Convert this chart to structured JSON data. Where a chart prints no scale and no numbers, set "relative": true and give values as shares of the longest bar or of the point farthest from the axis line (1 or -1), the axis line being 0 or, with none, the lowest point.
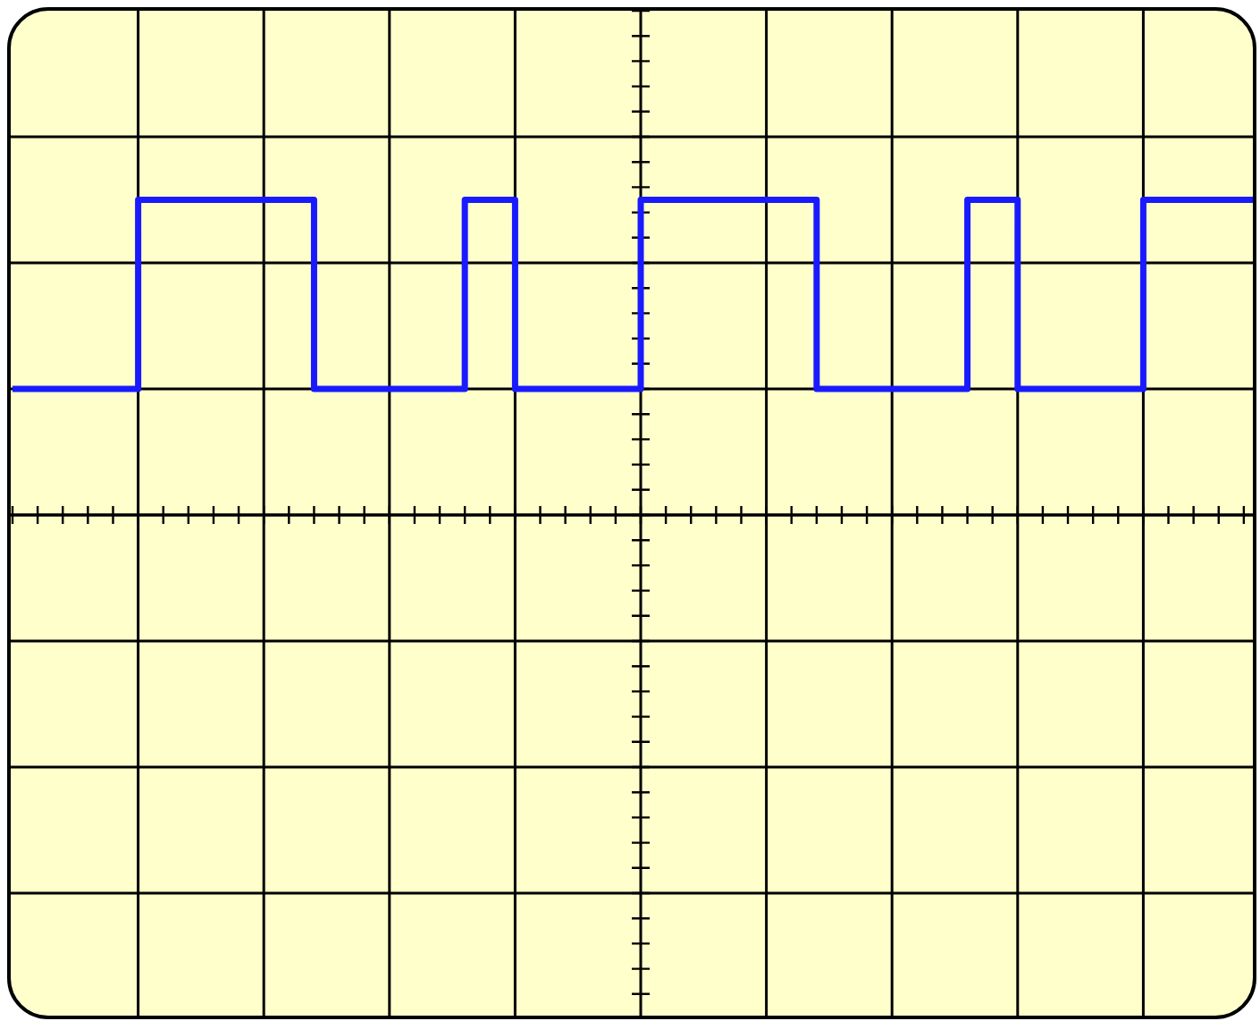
{
  "chart_data": {
    "type": "step",
    "relative": true,
    "categories": [
      null,
      null,
      null,
      null,
      null,
      null,
      null,
      null,
      null,
      null,
      null,
      null,
      null,
      null,
      null,
      null,
      null,
      null,
      null,
      null,
      null,
      null,
      null,
      null,
      null,
      null,
      null,
      null,
      null,
      null,
      null,
      null,
      null,
      null,
      null,
      null,
      null,
      null,
      null,
      null,
      null,
      null,
      null,
      null,
      null,
      null,
      null,
      null,
      null,
      null,
      null
    ],
    "values": [
      0.4,
      0.4,
      0.4,
      0.4,
      0.4,
      1,
      1,
      1,
      1,
      1,
      1,
      1,
      0.4,
      0.4,
      0.4,
      0.4,
      0.4,
      0.4,
      1,
      1,
      0.4,
      0.4,
      0.4,
      0.4,
      0.4,
      1,
      1,
      1,
      1,
      1,
      1,
      1,
      0.4,
      0.4,
      0.4,
      0.4,
      0.4,
      0.4,
      1,
      1,
      0.4,
      0.4,
      0.4,
      0.4,
      0.4,
      1,
      1,
      1,
      1,
      1,
      1
    ],
    "color": "#1a1aff",
    "grid": true,
    "line_style": "solid"
  }
}
